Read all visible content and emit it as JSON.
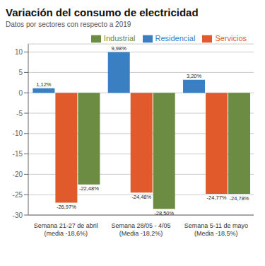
{
  "chart_data": {
    "type": "bar",
    "title": "Variación del consumo de electricidad",
    "subtitle": "Datos por sectores con respecto a 2019",
    "categories": [
      "Semana 21-27 de abril\n(media -18,6%)",
      "Semana 28/05 - 4/05\n(Media -18,2%)",
      "Semana 5-11 de mayo\n(Media -18,5%)"
    ],
    "series": [
      {
        "name": "Residencial",
        "color": "#3a7fc1",
        "values": [
          1.12,
          9.98,
          3.2
        ],
        "value_labels": [
          "1,12%",
          "9,98%",
          "3,20%"
        ]
      },
      {
        "name": "Servicios",
        "color": "#e05a2b",
        "values": [
          -26.97,
          -24.48,
          -24.77
        ],
        "value_labels": [
          "-26,97%",
          "-24,48%",
          "-24,77%"
        ]
      },
      {
        "name": "Industrial",
        "color": "#6b8c42",
        "values": [
          -22.48,
          -28.5,
          -24.78
        ],
        "value_labels": [
          "-22,48%",
          "-28,50%",
          "-24,78%"
        ]
      }
    ],
    "ylim": [
      -30,
      12
    ],
    "yticks": [
      -30,
      -25,
      -20,
      -15,
      -10,
      -5,
      0,
      5,
      10
    ],
    "grid": true,
    "legend": "upper right",
    "data_labels": true
  }
}
